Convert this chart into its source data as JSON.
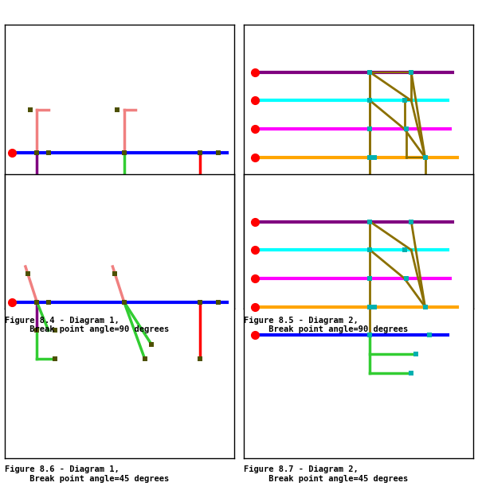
{
  "fig_width": 6.0,
  "fig_height": 6.26,
  "lw_main": 3.0,
  "lw_branch": 2.5,
  "lw_olive": 2.0,
  "node_dark": "#4d5000",
  "node_teal": "#00b0b0",
  "olive": "#8B7000",
  "captions": [
    "Figure 8.4 - Diagram 1,\n     Break point angle=90 degrees",
    "Figure 8.5 - Diagram 2,\n     Break point angle=90 degrees",
    "Figure 8.6 - Diagram 1,\n     Break point angle=45 degrees",
    "Figure 8.7 - Diagram 2,\n     Break point angle=45 degrees"
  ],
  "caption_fontsize": 7.5
}
